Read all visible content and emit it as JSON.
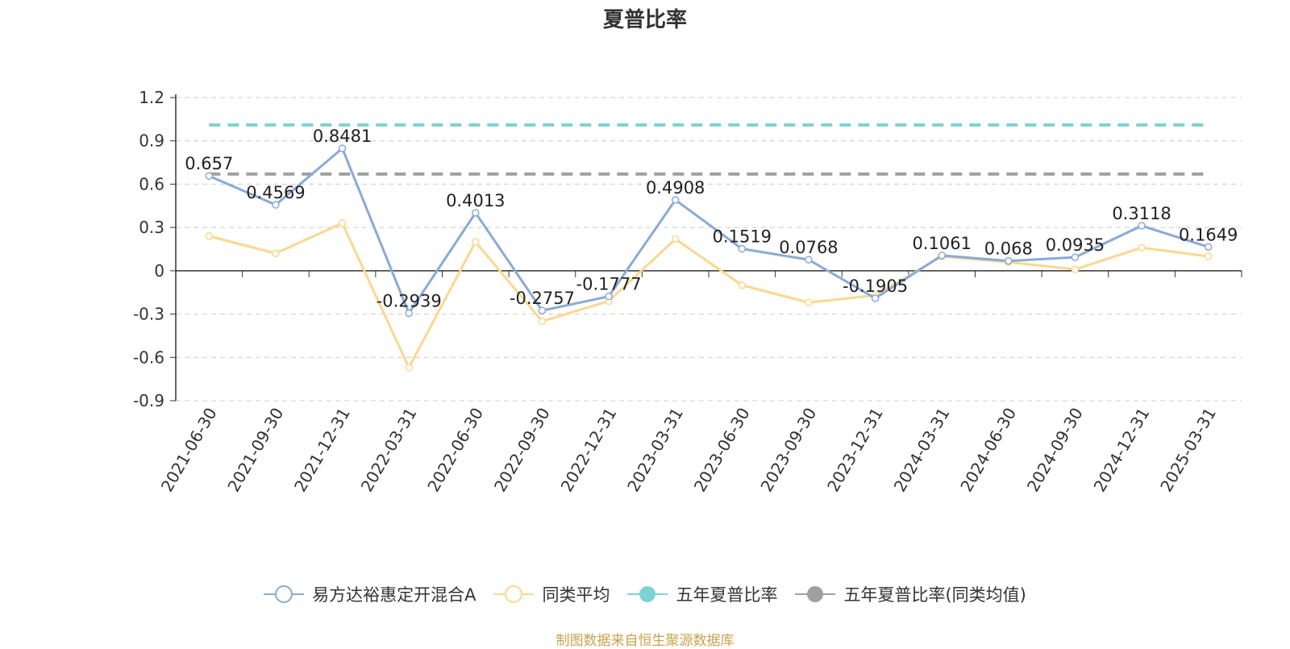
{
  "chart_data": {
    "type": "line",
    "title": "夏普比率",
    "categories": [
      "2021-06-30",
      "2021-09-30",
      "2021-12-31",
      "2022-03-31",
      "2022-06-30",
      "2022-09-30",
      "2022-12-31",
      "2023-03-31",
      "2023-06-30",
      "2023-09-30",
      "2023-12-31",
      "2024-03-31",
      "2024-06-30",
      "2024-09-30",
      "2024-12-31",
      "2025-03-31"
    ],
    "ylim": [
      -0.9,
      1.2
    ],
    "yticks": [
      1.2,
      0.9,
      0.6,
      0.3,
      0,
      -0.3,
      -0.6,
      -0.9
    ],
    "ytick_labels": [
      "1.2",
      "0.9",
      "0.6",
      "0.3",
      "0",
      "-0.3",
      "-0.6",
      "-0.9"
    ],
    "grid": true,
    "series": [
      {
        "name": "易方达裕惠定开混合A",
        "color": "#8aaad8",
        "values": [
          0.657,
          0.4569,
          0.8481,
          -0.2939,
          0.4013,
          -0.2757,
          -0.1777,
          0.4908,
          0.1519,
          0.0768,
          -0.1905,
          0.1061,
          0.068,
          0.0935,
          0.3118,
          0.1649
        ],
        "labels": [
          "0.657",
          "0.4569",
          "0.8481",
          "-0.2939",
          "0.4013",
          "-0.2757",
          "-0.1777",
          "0.4908",
          "0.1519",
          "0.0768",
          "-0.1905",
          "0.1061",
          "0.068",
          "0.0935",
          "0.3118",
          "0.1649"
        ]
      },
      {
        "name": "同类平均",
        "color": "#fbd88f",
        "values": [
          0.24,
          0.12,
          0.33,
          -0.67,
          0.2,
          -0.35,
          -0.21,
          0.22,
          -0.1,
          -0.22,
          -0.17,
          0.1,
          0.06,
          0.01,
          0.16,
          0.1
        ]
      },
      {
        "name": "五年夏普比率",
        "color": "#7fd2d2",
        "type": "reference",
        "value": 1.01
      },
      {
        "name": "五年夏普比率(同类均值)",
        "color": "#a0a0a0",
        "type": "reference",
        "value": 0.67
      }
    ]
  },
  "footer": {
    "source": "制图数据来自恒生聚源数据库"
  }
}
